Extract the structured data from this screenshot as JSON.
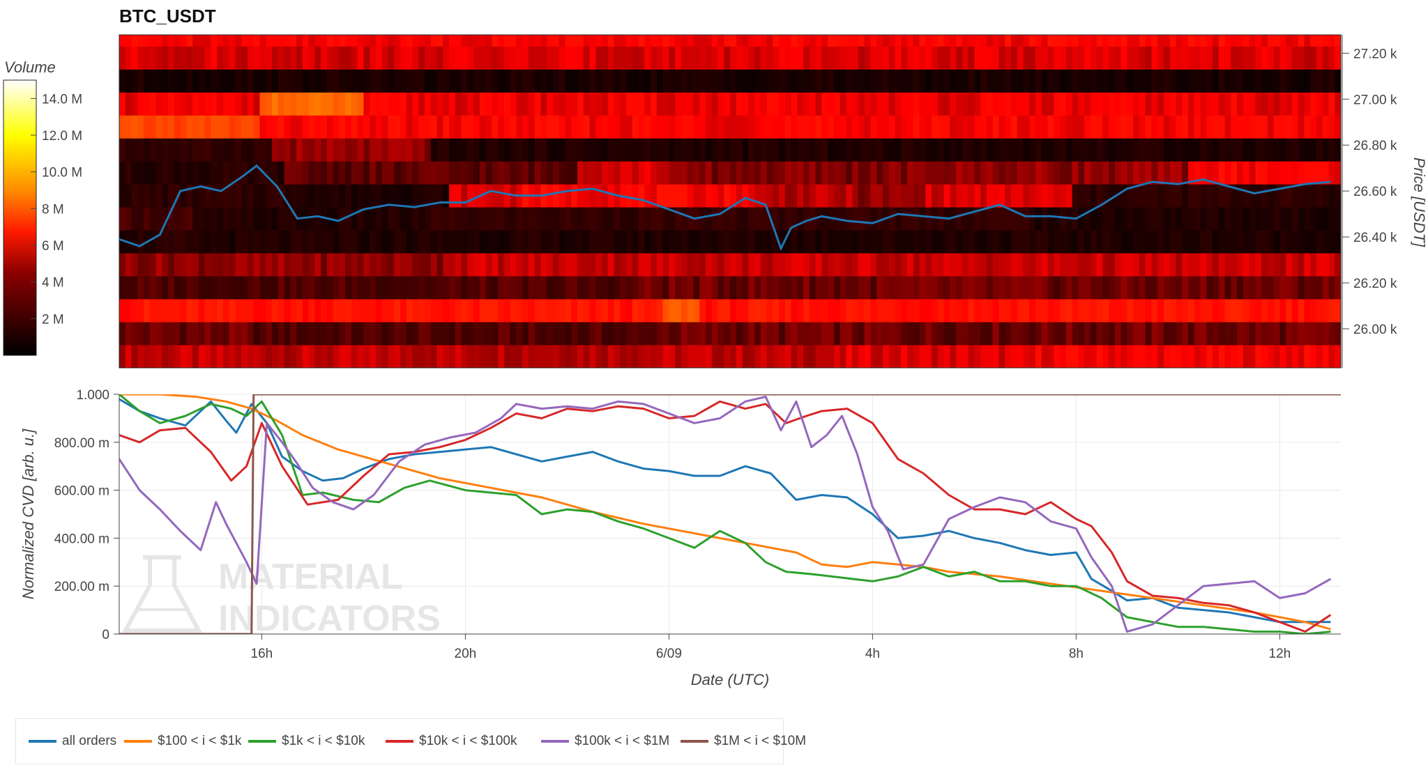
{
  "chart_data": [
    {
      "type": "heatmap",
      "title": "BTC_USDT",
      "colorbar": {
        "title": "Volume",
        "range": [
          0,
          15000000
        ],
        "ticks": [
          "2 M",
          "4 M",
          "6 M",
          "8 M",
          "10.0 M",
          "12.0 M",
          "14.0 M"
        ],
        "tick_values": [
          2000000,
          4000000,
          6000000,
          8000000,
          10000000,
          12000000,
          14000000
        ],
        "colormap": [
          "#000000",
          "#8b0000",
          "#ff1a00",
          "#ff8c00",
          "#ffff00",
          "#ffffff"
        ]
      },
      "ylabel": "Price [USDT]",
      "ylim": [
        25830,
        27280
      ],
      "y_ticks": [
        "26.00 k",
        "26.20 k",
        "26.40 k",
        "26.60 k",
        "26.80 k",
        "27.00 k",
        "27.20 k"
      ],
      "y_tick_values": [
        26000,
        26200,
        26400,
        26600,
        26800,
        27000,
        27200
      ],
      "xlim": [
        13.2,
        37.2
      ],
      "price_bands": [
        {
          "low": 25830,
          "high": 25930,
          "volumes": [
            [
              13.2,
              3.5
            ],
            [
              27.4,
              3.8
            ],
            [
              31.2,
              4.1
            ],
            [
              37.2,
              0
            ]
          ]
        },
        {
          "low": 25930,
          "high": 26030,
          "volumes": [
            [
              13.2,
              2.6
            ],
            [
              15.7,
              2.2
            ],
            [
              23.6,
              2.6
            ],
            [
              37.2,
              0
            ]
          ]
        },
        {
          "low": 26030,
          "high": 26130,
          "volumes": [
            [
              13.2,
              4.6
            ],
            [
              23.8,
              6.3
            ],
            [
              24.6,
              4.6
            ],
            [
              37.2,
              0
            ]
          ]
        },
        {
          "low": 26130,
          "high": 26230,
          "volumes": [
            [
              13.2,
              2.2
            ],
            [
              23.2,
              2.6
            ],
            [
              37.2,
              0
            ]
          ]
        },
        {
          "low": 26230,
          "high": 26330,
          "volumes": [
            [
              13.2,
              3.0
            ],
            [
              19.5,
              3.6
            ],
            [
              37.2,
              0
            ]
          ]
        },
        {
          "low": 26330,
          "high": 26430,
          "volumes": [
            [
              13.2,
              1.2
            ],
            [
              14.6,
              1.0
            ],
            [
              37.2,
              0
            ]
          ]
        },
        {
          "low": 26430,
          "high": 26530,
          "volumes": [
            [
              13.2,
              2.0
            ],
            [
              14.6,
              1.0
            ],
            [
              19.2,
              1.6
            ],
            [
              31.2,
              1.0
            ],
            [
              37.2,
              0
            ]
          ]
        },
        {
          "low": 26530,
          "high": 26630,
          "volumes": [
            [
              13.2,
              1.4
            ],
            [
              16.9,
              1.0
            ],
            [
              19.6,
              3.8
            ],
            [
              21.0,
              4.2
            ],
            [
              25.6,
              3.4
            ],
            [
              27.6,
              3.0
            ],
            [
              29.0,
              3.8
            ],
            [
              31.9,
              1.4
            ],
            [
              37.2,
              0
            ]
          ]
        },
        {
          "low": 26630,
          "high": 26730,
          "volumes": [
            [
              13.2,
              1.2
            ],
            [
              16.4,
              2.4
            ],
            [
              22.2,
              3.8
            ],
            [
              24.0,
              2.8
            ],
            [
              29.1,
              3.0
            ],
            [
              34.1,
              4.2
            ],
            [
              37.2,
              0
            ]
          ]
        },
        {
          "low": 26730,
          "high": 26830,
          "volumes": [
            [
              13.2,
              1.5
            ],
            [
              16.1,
              3.0
            ],
            [
              19.3,
              1.0
            ],
            [
              37.2,
              0
            ]
          ]
        },
        {
          "low": 26830,
          "high": 26930,
          "volumes": [
            [
              13.2,
              5.8
            ],
            [
              15.9,
              4.2
            ],
            [
              37.2,
              0
            ]
          ]
        },
        {
          "low": 26930,
          "high": 27030,
          "volumes": [
            [
              13.2,
              4.0
            ],
            [
              15.9,
              6.6
            ],
            [
              17.9,
              4.0
            ],
            [
              37.2,
              0
            ]
          ]
        },
        {
          "low": 27030,
          "high": 27130,
          "volumes": [
            [
              13.2,
              0.8
            ],
            [
              37.2,
              0
            ]
          ]
        },
        {
          "low": 27130,
          "high": 27230,
          "volumes": [
            [
              13.2,
              3.8
            ],
            [
              37.2,
              0
            ]
          ]
        },
        {
          "low": 27230,
          "high": 27280,
          "volumes": [
            [
              13.2,
              4.2
            ],
            [
              37.2,
              0
            ]
          ]
        }
      ],
      "series": [
        {
          "color": "#1f77b4",
          "x": [
            13.2,
            13.6,
            14.0,
            14.4,
            14.8,
            15.2,
            15.6,
            15.9,
            16.3,
            16.7,
            17.1,
            17.5,
            18.0,
            18.5,
            19.0,
            19.5,
            20.0,
            20.5,
            21.0,
            21.5,
            22.0,
            22.5,
            23.0,
            23.5,
            24.0,
            24.5,
            25.0,
            25.5,
            25.9,
            26.2,
            26.4,
            26.7,
            27.0,
            27.5,
            28.0,
            28.5,
            29.0,
            29.5,
            30.0,
            30.5,
            31.0,
            31.5,
            32.0,
            32.5,
            33.0,
            33.5,
            34.0,
            34.5,
            35.0,
            35.5,
            36.0,
            36.5,
            37.0
          ],
          "y": [
            26390,
            26360,
            26410,
            26600,
            26620,
            26600,
            26660,
            26710,
            26620,
            26480,
            26490,
            26470,
            26520,
            26540,
            26530,
            26550,
            26550,
            26600,
            26580,
            26580,
            26600,
            26610,
            26580,
            26560,
            26520,
            26480,
            26500,
            26570,
            26540,
            26350,
            26440,
            26470,
            26490,
            26470,
            26460,
            26500,
            26490,
            26480,
            26510,
            26540,
            26490,
            26490,
            26480,
            26540,
            26610,
            26640,
            26630,
            26650,
            26620,
            26590,
            26610,
            26630,
            26640
          ]
        }
      ]
    },
    {
      "type": "line",
      "xlabel": "Date (UTC)",
      "ylabel": "Normalized CVD [arb. u.]",
      "ylim": [
        0,
        1
      ],
      "xlim": [
        13.2,
        37.2
      ],
      "x_ticks": [
        "16h",
        "20h",
        "6/09",
        "4h",
        "8h",
        "12h"
      ],
      "x_tick_values": [
        16,
        20,
        24,
        28,
        32,
        36
      ],
      "y_ticks": [
        "0",
        "200.00 m",
        "400.00 m",
        "600.00 m",
        "800.00 m",
        "1.000"
      ],
      "y_tick_values": [
        0,
        0.2,
        0.4,
        0.6,
        0.8,
        1.0
      ],
      "series": [
        {
          "name": "all orders",
          "color": "#1f77b4",
          "x": [
            13.2,
            13.6,
            14.0,
            14.5,
            15.0,
            15.3,
            15.5,
            15.8,
            16.1,
            16.4,
            16.8,
            17.2,
            17.6,
            18.0,
            18.5,
            19.0,
            19.5,
            20.0,
            20.5,
            21.0,
            21.5,
            22.0,
            22.5,
            23.0,
            23.5,
            24.0,
            24.5,
            25.0,
            25.5,
            26.0,
            26.5,
            27.0,
            27.5,
            28.0,
            28.5,
            29.0,
            29.5,
            30.0,
            30.5,
            31.0,
            31.5,
            32.0,
            32.3,
            32.7,
            33.0,
            33.5,
            34.0,
            34.5,
            35.0,
            35.5,
            36.0,
            36.5,
            37.0
          ],
          "y": [
            0.98,
            0.93,
            0.9,
            0.87,
            0.97,
            0.89,
            0.84,
            0.96,
            0.88,
            0.74,
            0.68,
            0.64,
            0.65,
            0.69,
            0.73,
            0.75,
            0.76,
            0.77,
            0.78,
            0.75,
            0.72,
            0.74,
            0.76,
            0.72,
            0.69,
            0.68,
            0.66,
            0.66,
            0.7,
            0.67,
            0.56,
            0.58,
            0.57,
            0.5,
            0.4,
            0.41,
            0.43,
            0.4,
            0.38,
            0.35,
            0.33,
            0.34,
            0.23,
            0.18,
            0.14,
            0.15,
            0.11,
            0.1,
            0.09,
            0.07,
            0.05,
            0.05,
            0.05
          ]
        },
        {
          "name": "$100 < i < $1k",
          "color": "#ff7f0e",
          "x": [
            13.2,
            14.0,
            14.7,
            15.3,
            15.8,
            16.3,
            16.8,
            17.5,
            18.5,
            19.5,
            20.5,
            21.5,
            22.5,
            23.5,
            24.5,
            25.5,
            26.5,
            27.0,
            27.5,
            28.0,
            28.5,
            29.0,
            29.5,
            30.5,
            31.5,
            32.5,
            33.5,
            34.5,
            35.5,
            36.5,
            37.0
          ],
          "y": [
            1.0,
            1.0,
            0.99,
            0.97,
            0.94,
            0.89,
            0.83,
            0.77,
            0.71,
            0.65,
            0.61,
            0.57,
            0.51,
            0.46,
            0.42,
            0.38,
            0.34,
            0.29,
            0.28,
            0.3,
            0.29,
            0.28,
            0.26,
            0.24,
            0.21,
            0.18,
            0.15,
            0.12,
            0.09,
            0.05,
            0.02
          ]
        },
        {
          "name": "$1k < i < $10k",
          "color": "#2ca02c",
          "x": [
            13.2,
            13.6,
            14.0,
            14.5,
            15.0,
            15.4,
            15.7,
            16.0,
            16.4,
            16.8,
            17.2,
            17.8,
            18.3,
            18.8,
            19.3,
            20.0,
            20.5,
            21.0,
            21.5,
            22.0,
            22.5,
            23.0,
            23.5,
            24.0,
            24.5,
            25.0,
            25.5,
            25.9,
            26.3,
            26.8,
            27.2,
            27.6,
            28.0,
            28.5,
            29.0,
            29.5,
            30.0,
            30.5,
            31.0,
            31.5,
            32.0,
            32.5,
            33.0,
            33.5,
            34.0,
            34.5,
            35.0,
            35.5,
            36.0,
            36.5,
            37.0
          ],
          "y": [
            1.0,
            0.93,
            0.88,
            0.91,
            0.96,
            0.94,
            0.91,
            0.97,
            0.83,
            0.58,
            0.59,
            0.56,
            0.55,
            0.61,
            0.64,
            0.6,
            0.59,
            0.58,
            0.5,
            0.52,
            0.51,
            0.47,
            0.44,
            0.4,
            0.36,
            0.43,
            0.38,
            0.3,
            0.26,
            0.25,
            0.24,
            0.23,
            0.22,
            0.24,
            0.28,
            0.24,
            0.26,
            0.22,
            0.22,
            0.2,
            0.2,
            0.15,
            0.07,
            0.05,
            0.03,
            0.03,
            0.02,
            0.01,
            0.01,
            0.0,
            0.01
          ]
        },
        {
          "name": "$10k < i < $100k",
          "color": "#d62728",
          "x": [
            13.2,
            13.6,
            14.0,
            14.5,
            15.0,
            15.4,
            15.7,
            16.0,
            16.4,
            16.9,
            17.5,
            18.0,
            18.5,
            19.0,
            19.5,
            20.0,
            20.5,
            21.0,
            21.5,
            22.0,
            22.5,
            23.0,
            23.5,
            24.0,
            24.5,
            25.0,
            25.5,
            25.9,
            26.3,
            26.7,
            27.0,
            27.5,
            28.0,
            28.5,
            29.0,
            29.5,
            30.0,
            30.5,
            31.0,
            31.5,
            32.0,
            32.3,
            32.7,
            33.0,
            33.5,
            34.0,
            34.5,
            35.0,
            35.5,
            36.0,
            36.5,
            37.0
          ],
          "y": [
            0.83,
            0.8,
            0.85,
            0.86,
            0.76,
            0.64,
            0.7,
            0.88,
            0.7,
            0.54,
            0.56,
            0.66,
            0.75,
            0.76,
            0.78,
            0.81,
            0.86,
            0.92,
            0.9,
            0.94,
            0.93,
            0.95,
            0.94,
            0.9,
            0.91,
            0.97,
            0.94,
            0.96,
            0.88,
            0.91,
            0.93,
            0.94,
            0.88,
            0.73,
            0.67,
            0.58,
            0.52,
            0.52,
            0.5,
            0.55,
            0.48,
            0.45,
            0.34,
            0.22,
            0.16,
            0.15,
            0.13,
            0.12,
            0.09,
            0.05,
            0.01,
            0.08
          ]
        },
        {
          "name": "$100k < i < $1M",
          "color": "#9467bd",
          "x": [
            13.2,
            13.6,
            14.0,
            14.4,
            14.8,
            15.1,
            15.3,
            15.5,
            15.7,
            15.9,
            16.1,
            16.4,
            16.7,
            17.0,
            17.4,
            17.8,
            18.2,
            18.7,
            19.2,
            19.7,
            20.2,
            20.7,
            21.0,
            21.5,
            22.0,
            22.5,
            23.0,
            23.5,
            24.0,
            24.5,
            25.0,
            25.5,
            25.9,
            26.2,
            26.5,
            26.8,
            27.1,
            27.4,
            27.7,
            28.0,
            28.3,
            28.6,
            29.0,
            29.5,
            30.0,
            30.5,
            31.0,
            31.5,
            32.0,
            32.3,
            32.7,
            33.0,
            33.5,
            34.0,
            34.5,
            35.0,
            35.5,
            36.0,
            36.5,
            37.0
          ],
          "y": [
            0.73,
            0.6,
            0.52,
            0.43,
            0.35,
            0.55,
            0.46,
            0.38,
            0.3,
            0.21,
            0.88,
            0.8,
            0.71,
            0.61,
            0.55,
            0.52,
            0.58,
            0.72,
            0.79,
            0.82,
            0.84,
            0.9,
            0.96,
            0.94,
            0.95,
            0.94,
            0.97,
            0.96,
            0.92,
            0.88,
            0.9,
            0.97,
            0.99,
            0.85,
            0.97,
            0.78,
            0.83,
            0.91,
            0.75,
            0.53,
            0.43,
            0.27,
            0.29,
            0.48,
            0.53,
            0.57,
            0.55,
            0.47,
            0.44,
            0.32,
            0.2,
            0.01,
            0.04,
            0.12,
            0.2,
            0.21,
            0.22,
            0.15,
            0.17,
            0.23
          ]
        },
        {
          "name": "$1M < i < $10M",
          "color": "#8c564b",
          "x": [
            13.2,
            15.8,
            15.84,
            15.88,
            16.0,
            37.2
          ],
          "y": [
            0.0,
            0.0,
            1.0,
            1.0,
            1.0,
            1.0
          ]
        }
      ],
      "watermark": [
        "MATERIAL",
        "INDICATORS"
      ],
      "legend_position": "bottom-left"
    }
  ]
}
